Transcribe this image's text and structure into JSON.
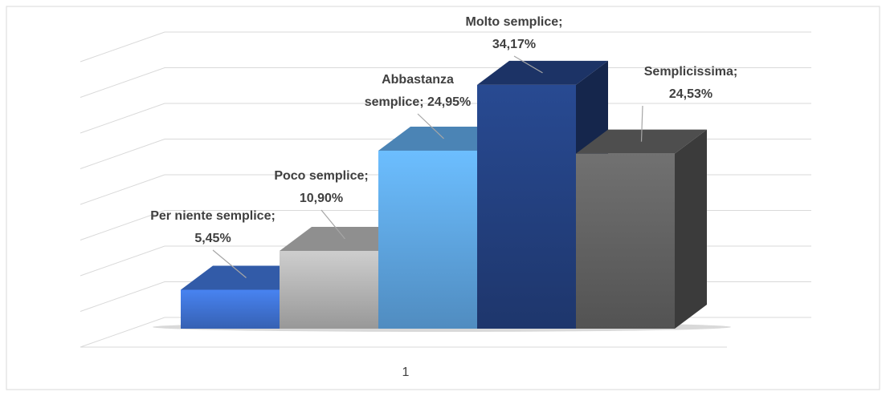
{
  "chart_data": {
    "type": "bar3d",
    "categories": [
      "1"
    ],
    "series": [
      {
        "name": "Per niente semplice",
        "color": "#3f72d2",
        "values": [
          5.45
        ],
        "value_labels": [
          [
            "Per niente semplice;",
            "5,45%"
          ]
        ]
      },
      {
        "name": "Poco semplice",
        "color": "#b3b3b3",
        "values": [
          10.9
        ],
        "value_labels": [
          [
            "Poco semplice;",
            "10,90%"
          ]
        ]
      },
      {
        "name": "Abbastanza semplice",
        "color": "#5ea5e2",
        "values": [
          24.95
        ],
        "value_labels": [
          [
            "Abbastanza",
            "semplice; 24,95%"
          ]
        ]
      },
      {
        "name": "Molto semplice",
        "color": "#23407f",
        "values": [
          34.17
        ],
        "value_labels": [
          [
            "Molto semplice;",
            "34,17%"
          ]
        ]
      },
      {
        "name": "Semplicissima",
        "color": "#626262",
        "values": [
          24.53
        ],
        "value_labels": [
          [
            "Semplicissima;",
            "24,53%"
          ]
        ]
      }
    ],
    "ylim": [
      0,
      40
    ],
    "yticks": [
      0,
      5,
      10,
      15,
      20,
      25,
      30,
      35,
      40
    ],
    "grid": true
  }
}
